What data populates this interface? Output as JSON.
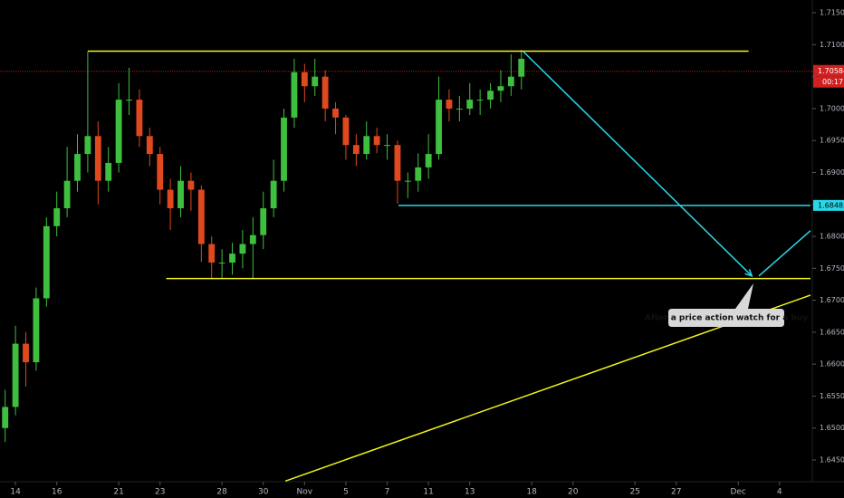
{
  "chart_data": {
    "type": "candlestick",
    "x": [
      -0.5,
      0,
      0.5,
      1,
      1.5,
      2,
      2.5,
      3,
      3.5,
      4,
      4.5,
      5,
      5.5,
      6,
      6.5,
      7,
      7.5,
      8,
      8.5,
      9,
      9.5,
      10,
      10.5,
      11,
      11.5,
      12,
      12.5,
      13,
      13.5,
      14,
      14.5,
      15,
      15.5,
      16,
      16.5,
      17,
      17.5,
      18,
      18.5,
      19,
      19.5,
      20,
      20.5,
      21,
      21.5,
      22,
      22.5,
      23,
      23.5,
      24,
      24.5
    ],
    "open": [
      1.65,
      1.6533,
      1.6632,
      1.6603,
      1.6703,
      1.6816,
      1.6844,
      1.6887,
      1.6929,
      1.6957,
      1.6887,
      1.6915,
      1.7014,
      1.7014,
      1.6957,
      1.6929,
      1.6873,
      1.6844,
      1.6887,
      1.6873,
      1.6788,
      1.6759,
      1.6759,
      1.6773,
      1.6788,
      1.6802,
      1.6844,
      1.6887,
      1.6986,
      1.7057,
      1.7035,
      1.705,
      1.7,
      1.6986,
      1.6943,
      1.6929,
      1.6957,
      1.6943,
      1.6943,
      1.6887,
      1.6887,
      1.6908,
      1.6929,
      1.7014,
      1.7,
      1.7,
      1.7014,
      1.7014,
      1.7028,
      1.7035,
      1.705
    ],
    "high": [
      1.656,
      1.666,
      1.665,
      1.672,
      1.683,
      1.687,
      1.694,
      1.696,
      1.7089,
      1.698,
      1.694,
      1.704,
      1.7064,
      1.703,
      1.697,
      1.694,
      1.689,
      1.691,
      1.69,
      1.688,
      1.68,
      1.678,
      1.679,
      1.681,
      1.683,
      1.687,
      1.692,
      1.7,
      1.7078,
      1.707,
      1.7078,
      1.706,
      1.701,
      1.699,
      1.696,
      1.698,
      1.697,
      1.696,
      1.695,
      1.69,
      1.693,
      1.696,
      1.705,
      1.703,
      1.702,
      1.704,
      1.703,
      1.704,
      1.706,
      1.7085,
      1.7092
    ],
    "low": [
      1.6478,
      1.652,
      1.6565,
      1.659,
      1.669,
      1.68,
      1.683,
      1.687,
      1.69,
      1.685,
      1.687,
      1.69,
      1.699,
      1.694,
      1.691,
      1.685,
      1.681,
      1.683,
      1.684,
      1.676,
      1.6733,
      1.6735,
      1.674,
      1.675,
      1.6733,
      1.678,
      1.683,
      1.687,
      1.697,
      1.701,
      1.702,
      1.698,
      1.696,
      1.692,
      1.691,
      1.692,
      1.693,
      1.692,
      1.6851,
      1.686,
      1.687,
      1.689,
      1.692,
      1.698,
      1.698,
      1.699,
      1.699,
      1.7,
      1.701,
      1.702,
      1.703
    ],
    "close": [
      1.6533,
      1.6632,
      1.6603,
      1.6703,
      1.6816,
      1.6844,
      1.6887,
      1.6929,
      1.6957,
      1.6887,
      1.6915,
      1.7014,
      1.7014,
      1.6957,
      1.6929,
      1.6873,
      1.6844,
      1.6887,
      1.6873,
      1.6788,
      1.6759,
      1.6759,
      1.6773,
      1.6788,
      1.6802,
      1.6844,
      1.6887,
      1.6986,
      1.7057,
      1.7035,
      1.705,
      1.7,
      1.6986,
      1.6943,
      1.6929,
      1.6957,
      1.6943,
      1.6943,
      1.6887,
      1.6887,
      1.6908,
      1.6929,
      1.7014,
      1.7,
      1.7,
      1.7014,
      1.7014,
      1.7028,
      1.7035,
      1.705,
      1.7078
    ],
    "up_color": "#3fbf3f",
    "down_color": "#e0481f",
    "xlim": [
      -0.75,
      38.5
    ],
    "xticks": [
      {
        "value": 0,
        "label": "14"
      },
      {
        "value": 2,
        "label": "16"
      },
      {
        "value": 5,
        "label": "21"
      },
      {
        "value": 7,
        "label": "23"
      },
      {
        "value": 10,
        "label": "28"
      },
      {
        "value": 12,
        "label": "30"
      },
      {
        "value": 14,
        "label": "Nov"
      },
      {
        "value": 16,
        "label": "5"
      },
      {
        "value": 18,
        "label": "7"
      },
      {
        "value": 20,
        "label": "11"
      },
      {
        "value": 22,
        "label": "13"
      },
      {
        "value": 25,
        "label": "18"
      },
      {
        "value": 27,
        "label": "20"
      },
      {
        "value": 30,
        "label": "25"
      },
      {
        "value": 32,
        "label": "27"
      },
      {
        "value": 35,
        "label": "Dec"
      },
      {
        "value": 37,
        "label": "4"
      }
    ],
    "ylim": [
      1.6416,
      1.717
    ],
    "yticks": [
      {
        "value": 1.715,
        "label": "1.71500"
      },
      {
        "value": 1.71,
        "label": "1.71000"
      },
      {
        "value": 1.705,
        "label": "1.70500"
      },
      {
        "value": 1.7,
        "label": "1.70000"
      },
      {
        "value": 1.695,
        "label": "1.69500"
      },
      {
        "value": 1.69,
        "label": "1.69000"
      },
      {
        "value": 1.685,
        "label": "1.68500"
      },
      {
        "value": 1.68,
        "label": "1.68000"
      },
      {
        "value": 1.675,
        "label": "1.67500"
      },
      {
        "value": 1.67,
        "label": "1.67000"
      },
      {
        "value": 1.665,
        "label": "1.66500"
      },
      {
        "value": 1.66,
        "label": "1.66000"
      },
      {
        "value": 1.655,
        "label": "1.65500"
      },
      {
        "value": 1.65,
        "label": "1.65000"
      },
      {
        "value": 1.645,
        "label": "1.64500"
      }
    ],
    "current_price": 1.70584,
    "countdown": "00:17",
    "current_color": "#d0201f",
    "level_label": 1.68485,
    "level_color": "#28d8e8",
    "drawings": [
      {
        "color": "#f2f21c",
        "x": [
          3.5,
          35.5
        ],
        "y": [
          1.709,
          1.709
        ]
      },
      {
        "color": "#f2f21c",
        "x": [
          7.3,
          38.5
        ],
        "y": [
          1.6734,
          1.6734
        ]
      },
      {
        "color": "#28d8e8",
        "x": [
          18.55,
          38.5
        ],
        "y": [
          1.68485,
          1.68485
        ]
      },
      {
        "color": "#f2f21c",
        "x": [
          13.07,
          38.5
        ],
        "y": [
          1.6417,
          1.6708
        ]
      },
      {
        "color": "#28d8e8",
        "x": [
          24.6,
          35.66
        ],
        "y": [
          1.7089,
          1.6738
        ]
      },
      {
        "color": "#28d8e8",
        "x": [
          36.0,
          38.5
        ],
        "y": [
          1.6738,
          1.6809
        ]
      }
    ],
    "callout": "After a price action watch for a buy"
  }
}
